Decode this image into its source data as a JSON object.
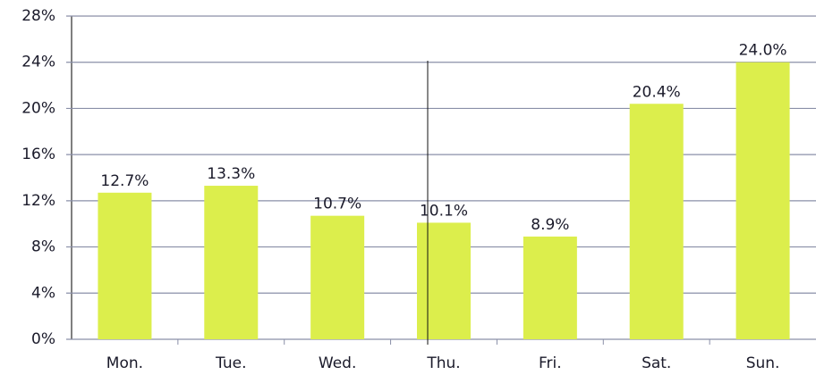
{
  "chart_data": {
    "type": "bar",
    "categories": [
      "Mon.",
      "Tue.",
      "Wed.",
      "Thu.",
      "Fri.",
      "Sat.",
      "Sun."
    ],
    "values": [
      12.7,
      13.3,
      10.7,
      10.1,
      8.9,
      20.4,
      24.0
    ],
    "value_labels": [
      "12.7%",
      "13.3%",
      "10.7%",
      "10.1%",
      "8.9%",
      "20.4%",
      "24.0%"
    ],
    "color": "#dcee4c",
    "ylim": [
      0,
      28
    ],
    "yticks": [
      {
        "value": 0,
        "label": "0%"
      },
      {
        "value": 4,
        "label": "4%"
      },
      {
        "value": 8,
        "label": "8%"
      },
      {
        "value": 12,
        "label": "12%"
      },
      {
        "value": 16,
        "label": "16%"
      },
      {
        "value": 20,
        "label": "20%"
      },
      {
        "value": 24,
        "label": "24%"
      },
      {
        "value": 28,
        "label": "28%"
      }
    ],
    "grid": true
  }
}
